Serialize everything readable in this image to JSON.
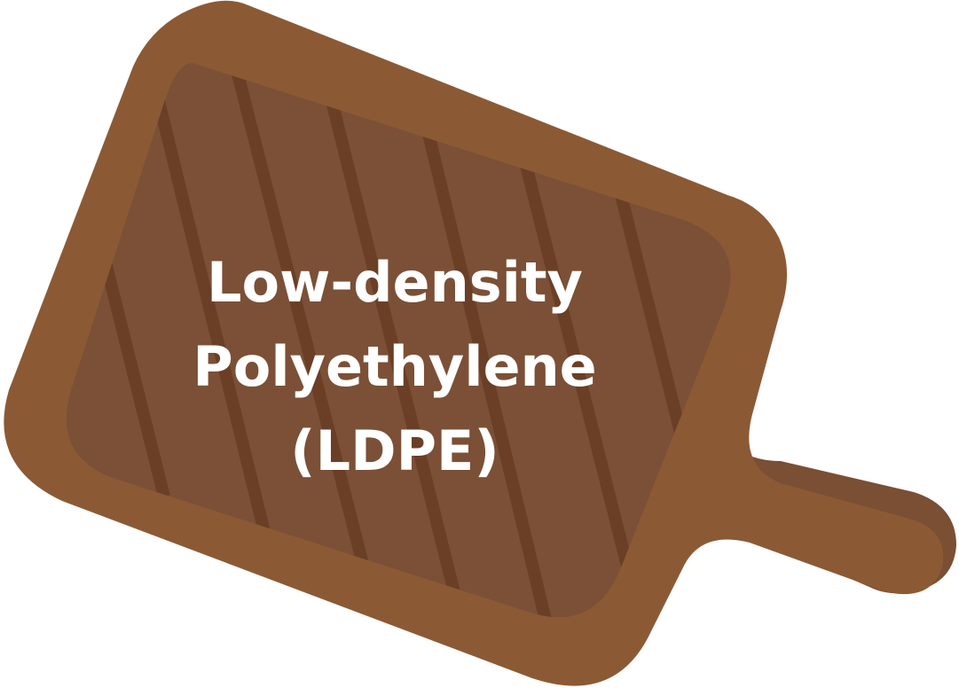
{
  "label": {
    "lines": [
      "Low-density",
      "Polyethylene",
      "(LDPE)"
    ]
  },
  "colors": {
    "board_outer": "#8b5a34",
    "board_inner": "#7b5036",
    "handle_shadow": "#7a4f33",
    "stripe": "#6a3f26",
    "text": "#ffffff"
  },
  "icons": {
    "board": "cutting-board-icon"
  }
}
